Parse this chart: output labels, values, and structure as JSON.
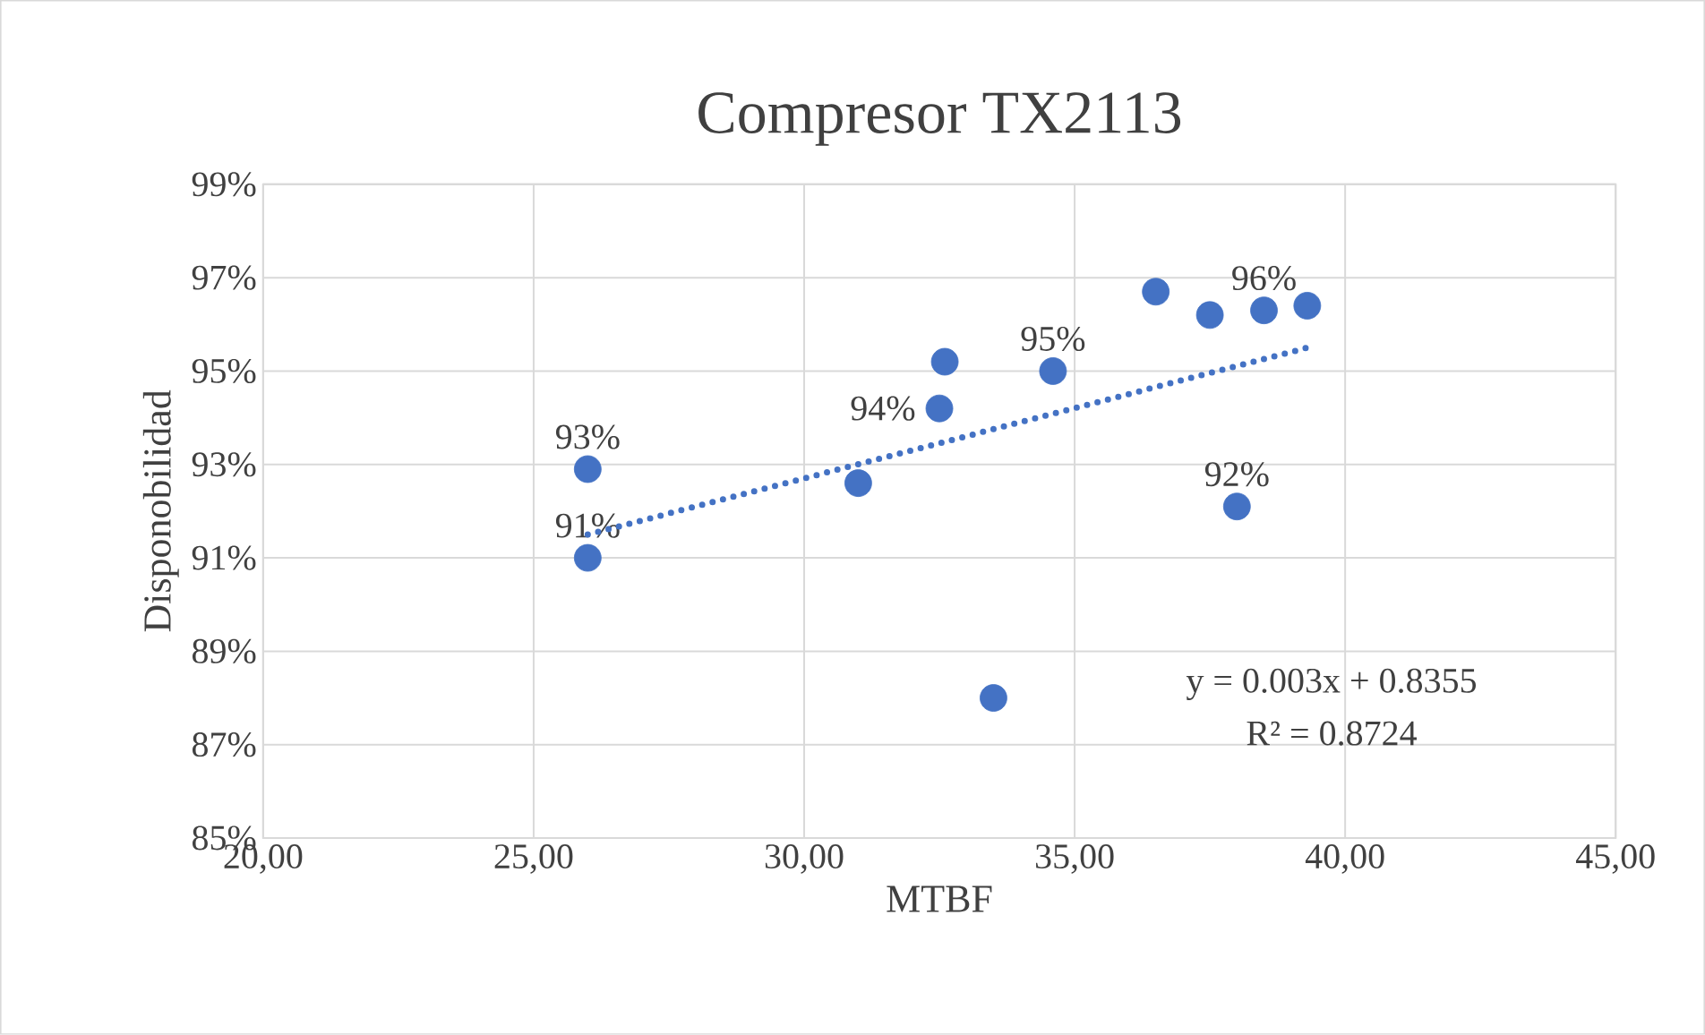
{
  "chart_data": {
    "type": "scatter",
    "title": "Compresor TX2113",
    "xlabel": "MTBF",
    "ylabel": "Disponobilidad",
    "xlim": [
      20,
      45
    ],
    "ylim": [
      85,
      99
    ],
    "xticks": [
      {
        "value": 20,
        "label": "20,00"
      },
      {
        "value": 25,
        "label": "25,00"
      },
      {
        "value": 30,
        "label": "30,00"
      },
      {
        "value": 35,
        "label": "35,00"
      },
      {
        "value": 40,
        "label": "40,00"
      },
      {
        "value": 45,
        "label": "45,00"
      }
    ],
    "yticks": [
      {
        "value": 85,
        "label": "85%"
      },
      {
        "value": 87,
        "label": "87%"
      },
      {
        "value": 89,
        "label": "89%"
      },
      {
        "value": 91,
        "label": "91%"
      },
      {
        "value": 93,
        "label": "93%"
      },
      {
        "value": 95,
        "label": "95%"
      },
      {
        "value": 97,
        "label": "97%"
      },
      {
        "value": 99,
        "label": "99%"
      }
    ],
    "grid": true,
    "marker": "circle",
    "series": [
      {
        "color": "#4472c4",
        "x": [
          26.0,
          26.0,
          31.0,
          32.5,
          32.6,
          33.5,
          34.6,
          36.5,
          37.5,
          38.5,
          39.3,
          38.0
        ],
        "values": [
          92.9,
          91.0,
          92.6,
          94.2,
          95.2,
          88.0,
          95.0,
          96.7,
          96.2,
          96.3,
          96.4,
          92.1
        ],
        "value_labels": [
          "93%",
          "91%",
          null,
          "94%",
          null,
          null,
          "95%",
          null,
          null,
          "96%",
          null,
          "92%"
        ]
      },
      {
        "type": "line",
        "color": "#4472c4",
        "line_style": "dotted",
        "marker": "none",
        "x": [
          26.0,
          39.3
        ],
        "values": [
          91.5,
          95.5
        ]
      }
    ],
    "annotations": [
      "y = 0.003x + 0.8355",
      "R² = 0.8724"
    ]
  }
}
